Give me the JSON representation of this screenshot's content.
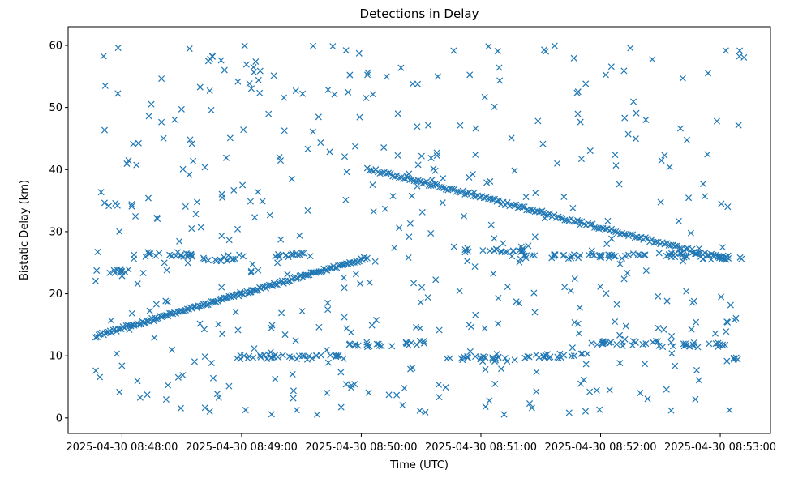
{
  "chart_data": {
    "type": "scatter",
    "title": "Detections in Delay",
    "xlabel": "Time (UTC)",
    "ylabel": "Bistatic Delay (km)",
    "marker": "x",
    "color": "#1f77b4",
    "xlim_minutes": [
      -0.45,
      5.42
    ],
    "ylim": [
      -2.5,
      63
    ],
    "x_tick_values_minutes": [
      0,
      1,
      2,
      3,
      4,
      5
    ],
    "x_tick_labels": [
      "2025-04-30 08:48:00",
      "2025-04-30 08:49:00",
      "2025-04-30 08:50:00",
      "2025-04-30 08:51:00",
      "2025-04-30 08:52:00",
      "2025-04-30 08:53:00"
    ],
    "y_ticks": [
      0,
      10,
      20,
      30,
      40,
      50,
      60
    ],
    "series": [
      {
        "name": "rising track",
        "t_start_min": -0.22,
        "t_end_min": 2.05,
        "delay_start_km": 13.2,
        "delay_end_km": 25.8,
        "count": 170,
        "jitter_km": 0.25
      },
      {
        "name": "falling track",
        "t_start_min": 2.05,
        "t_end_min": 5.05,
        "delay_start_km": 40.2,
        "delay_end_km": 25.5,
        "count": 170,
        "jitter_km": 0.3
      },
      {
        "name": "band 26 km",
        "segments": [
          [
            -0.22,
            0.1,
            23.7
          ],
          [
            0.1,
            0.6,
            26.3
          ],
          [
            0.6,
            0.95,
            25.6
          ],
          [
            1.2,
            1.6,
            26.2
          ],
          [
            2.85,
            3.35,
            27.0
          ],
          [
            3.35,
            4.2,
            26.0
          ],
          [
            4.2,
            4.8,
            26.2
          ],
          [
            4.8,
            5.2,
            25.8
          ]
        ],
        "count": 150,
        "jitter_km": 0.35
      },
      {
        "name": "band 10 km",
        "segments": [
          [
            0.9,
            1.9,
            9.8
          ],
          [
            1.9,
            2.3,
            11.8
          ],
          [
            2.3,
            2.55,
            12.0
          ],
          [
            2.7,
            3.4,
            9.5
          ],
          [
            3.4,
            3.9,
            10.0
          ],
          [
            3.9,
            4.5,
            12.0
          ],
          [
            4.5,
            5.05,
            11.8
          ],
          [
            5.05,
            5.2,
            9.5
          ]
        ],
        "count": 150,
        "jitter_km": 0.4
      },
      {
        "name": "clutter",
        "t_range_min": [
          -0.25,
          5.2
        ],
        "delay_range_km": [
          0.5,
          60
        ],
        "count": 450
      }
    ]
  }
}
